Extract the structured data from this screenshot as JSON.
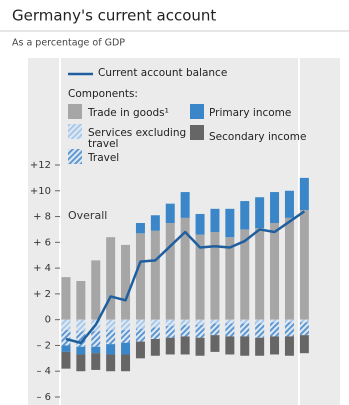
{
  "chart_data": {
    "type": "bar",
    "title": "Germany's current account",
    "subtitle": "As a percentage of GDP",
    "legend_title": "Components:",
    "annotation": "Overall",
    "categories": [
      null,
      null,
      null,
      null,
      null,
      null,
      null,
      null,
      null,
      null,
      null,
      null,
      null,
      null,
      null,
      null,
      null
    ],
    "ylim": [
      -6.2,
      12.6
    ],
    "yticks": [
      {
        "value": 12,
        "label": "+12"
      },
      {
        "value": 10,
        "label": "+10"
      },
      {
        "value": 8,
        "label": "+ 8"
      },
      {
        "value": 6,
        "label": "+ 6"
      },
      {
        "value": 4,
        "label": "+ 4"
      },
      {
        "value": 2,
        "label": "+ 2"
      },
      0,
      {
        "value": -2,
        "label": "– 2"
      },
      {
        "value": -4,
        "label": "– 4"
      },
      {
        "value": -6,
        "label": "– 6"
      }
    ],
    "series": [
      {
        "name": "Trade in goods¹",
        "type": "bar",
        "color": "#a6a6a6",
        "values": [
          3.3,
          3.0,
          4.6,
          6.4,
          5.8,
          6.7,
          6.9,
          7.5,
          7.9,
          6.6,
          6.8,
          6.4,
          7.0,
          7.1,
          7.5,
          7.9,
          8.5
        ]
      },
      {
        "name": "Services excluding travel",
        "type": "bar",
        "color": "#a9c8e8",
        "pattern": "hatch",
        "values": [
          -0.8,
          -0.9,
          -0.9,
          -0.8,
          -0.8,
          -0.7,
          -0.6,
          -0.5,
          -0.4,
          -0.4,
          -0.3,
          -0.3,
          -0.3,
          -0.3,
          -0.2,
          -0.2,
          -0.2
        ]
      },
      {
        "name": "Travel",
        "type": "bar",
        "color": "#5f97cf",
        "pattern": "hatch",
        "values": [
          -1.2,
          -1.2,
          -1.2,
          -1.1,
          -1.0,
          -1.0,
          -0.9,
          -0.9,
          -0.9,
          -1.0,
          -0.9,
          -1.0,
          -1.0,
          -1.1,
          -1.1,
          -1.1,
          -1.0
        ]
      },
      {
        "name": "Primary income",
        "type": "bar",
        "color": "#3a86c8",
        "values": [
          -0.5,
          -0.6,
          -0.5,
          -0.8,
          -0.9,
          0.8,
          1.2,
          1.5,
          2.0,
          1.6,
          1.8,
          2.2,
          2.2,
          2.4,
          2.4,
          2.1,
          2.5
        ]
      },
      {
        "name": "Secondary income",
        "type": "bar",
        "color": "#666666",
        "values": [
          -1.3,
          -1.3,
          -1.3,
          -1.3,
          -1.3,
          -1.3,
          -1.3,
          -1.3,
          -1.4,
          -1.4,
          -1.3,
          -1.4,
          -1.5,
          -1.4,
          -1.4,
          -1.5,
          -1.4
        ]
      },
      {
        "name": "Current account balance",
        "type": "line",
        "color": "#1f5fa0",
        "values": [
          -1.5,
          -1.8,
          -0.4,
          1.8,
          1.5,
          4.5,
          4.6,
          5.7,
          6.8,
          5.6,
          5.7,
          5.6,
          6.1,
          7.0,
          6.8,
          7.6,
          8.4
        ]
      }
    ]
  }
}
